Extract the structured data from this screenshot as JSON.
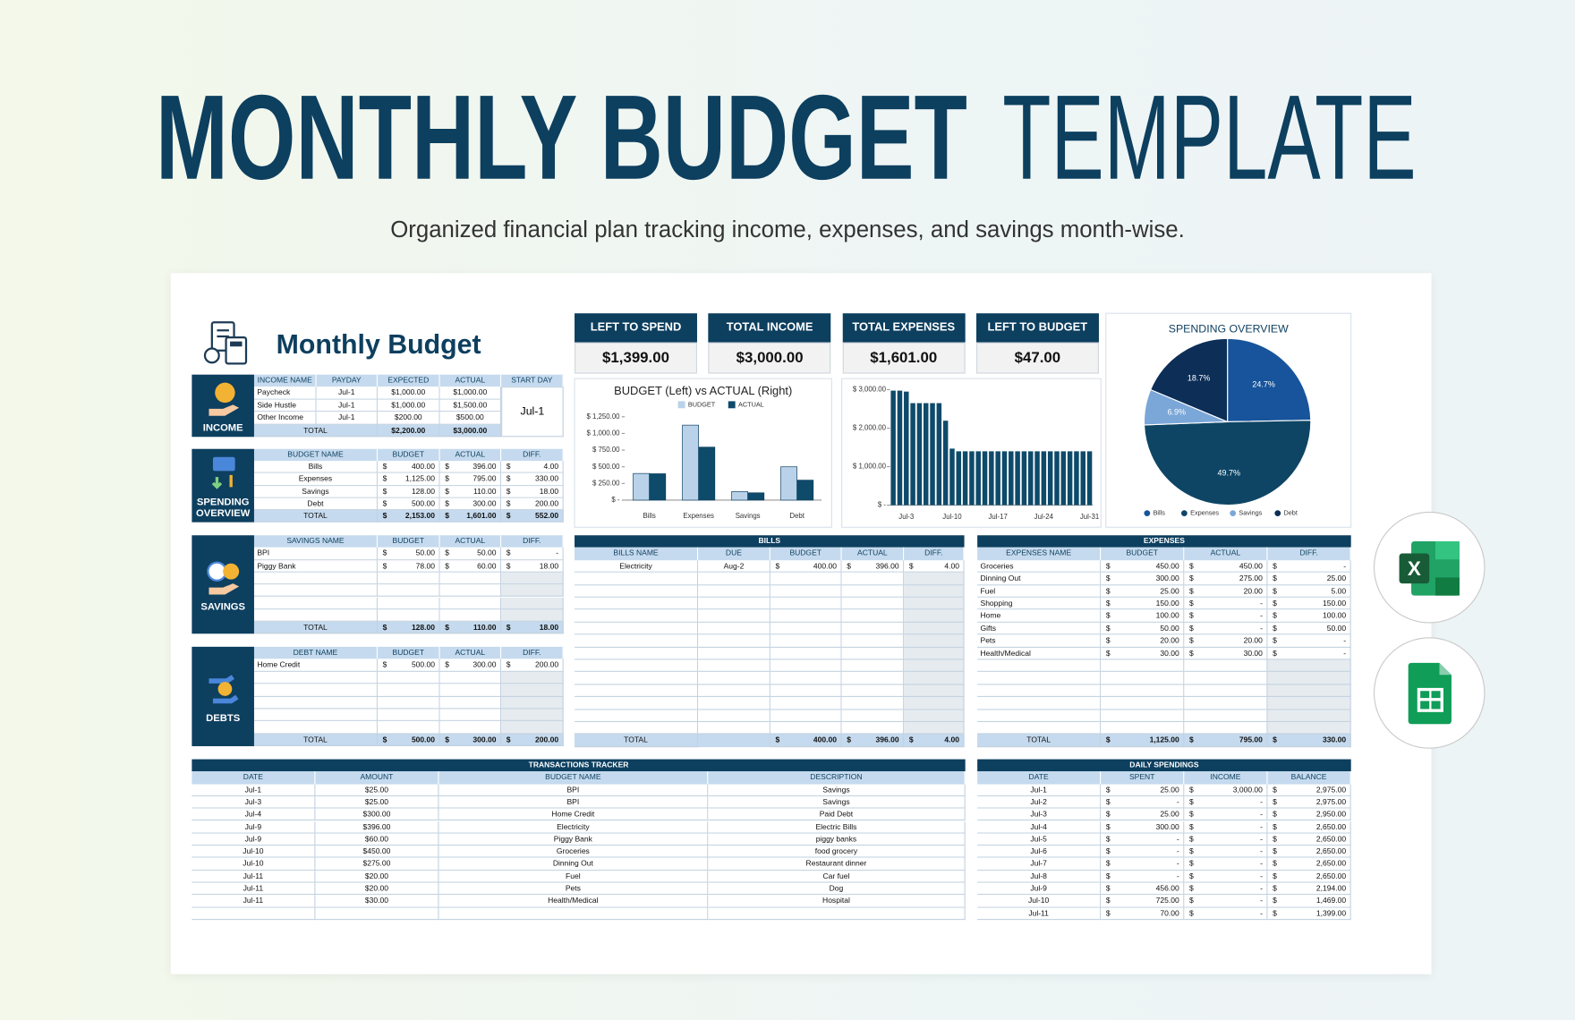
{
  "header": {
    "title_bold": "MONTHLY BUDGET",
    "title_light": "TEMPLATE",
    "subtitle": "Organized financial plan tracking income, expenses, and savings month-wise."
  },
  "app_icons": {
    "excel_letter": "X"
  },
  "sheet": {
    "title": "Monthly Budget",
    "currency": "$",
    "kpis": [
      {
        "label": "LEFT TO SPEND",
        "value": "$1,399.00"
      },
      {
        "label": "TOTAL INCOME",
        "value": "$3,000.00"
      },
      {
        "label": "TOTAL EXPENSES",
        "value": "$1,601.00"
      },
      {
        "label": "LEFT TO BUDGET",
        "value": "$47.00"
      }
    ],
    "income": {
      "label": "INCOME",
      "headers": [
        "INCOME NAME",
        "PAYDAY",
        "EXPECTED",
        "ACTUAL",
        "START DAY"
      ],
      "rows": [
        [
          "Paycheck",
          "Jul-1",
          "$1,000.00",
          "$1,000.00"
        ],
        [
          "Side Hustle",
          "Jul-1",
          "$1,000.00",
          "$1,500.00"
        ],
        [
          "Other Income",
          "Jul-1",
          "$200.00",
          "$500.00"
        ]
      ],
      "total": [
        "TOTAL",
        "$2,200.00",
        "$3,000.00"
      ],
      "start_day": "Jul-1"
    },
    "spending": {
      "label": "SPENDING OVERVIEW",
      "headers": [
        "BUDGET NAME",
        "BUDGET",
        "ACTUAL",
        "DIFF."
      ],
      "rows": [
        [
          "Bills",
          "400.00",
          "396.00",
          "4.00"
        ],
        [
          "Expenses",
          "1,125.00",
          "795.00",
          "330.00"
        ],
        [
          "Savings",
          "128.00",
          "110.00",
          "18.00"
        ],
        [
          "Debt",
          "500.00",
          "300.00",
          "200.00"
        ]
      ],
      "total": [
        "TOTAL",
        "2,153.00",
        "1,601.00",
        "552.00"
      ]
    },
    "savings": {
      "label": "SAVINGS",
      "headers": [
        "SAVINGS NAME",
        "BUDGET",
        "ACTUAL",
        "DIFF."
      ],
      "rows": [
        [
          "BPI",
          "50.00",
          "50.00",
          "-"
        ],
        [
          "Piggy Bank",
          "78.00",
          "60.00",
          "18.00"
        ]
      ],
      "total": [
        "TOTAL",
        "128.00",
        "110.00",
        "18.00"
      ]
    },
    "debts": {
      "label": "DEBTS",
      "headers": [
        "DEBT NAME",
        "BUDGET",
        "ACTUAL",
        "DIFF."
      ],
      "rows": [
        [
          "Home Credit",
          "500.00",
          "300.00",
          "200.00"
        ]
      ],
      "total": [
        "TOTAL",
        "500.00",
        "300.00",
        "200.00"
      ]
    },
    "bills": {
      "title": "BILLS",
      "headers": [
        "BILLS NAME",
        "DUE",
        "BUDGET",
        "ACTUAL",
        "DIFF."
      ],
      "rows": [
        [
          "Electricity",
          "Aug-2",
          "400.00",
          "396.00",
          "4.00"
        ]
      ],
      "total": [
        "TOTAL",
        "400.00",
        "396.00",
        "4.00"
      ]
    },
    "expenses": {
      "title": "EXPENSES",
      "headers": [
        "EXPENSES NAME",
        "BUDGET",
        "ACTUAL",
        "DIFF."
      ],
      "rows": [
        [
          "Groceries",
          "450.00",
          "450.00",
          "-"
        ],
        [
          "Dinning Out",
          "300.00",
          "275.00",
          "25.00"
        ],
        [
          "Fuel",
          "25.00",
          "20.00",
          "5.00"
        ],
        [
          "Shopping",
          "150.00",
          "-",
          "150.00"
        ],
        [
          "Home",
          "100.00",
          "-",
          "100.00"
        ],
        [
          "Gifts",
          "50.00",
          "-",
          "50.00"
        ],
        [
          "Pets",
          "20.00",
          "20.00",
          "-"
        ],
        [
          "Health/Medical",
          "30.00",
          "30.00",
          "-"
        ]
      ],
      "total": [
        "TOTAL",
        "1,125.00",
        "795.00",
        "330.00"
      ]
    },
    "transactions": {
      "title": "TRANSACTIONS TRACKER",
      "headers": [
        "DATE",
        "AMOUNT",
        "BUDGET NAME",
        "DESCRIPTION"
      ],
      "rows": [
        [
          "Jul-1",
          "$25.00",
          "BPI",
          "Savings"
        ],
        [
          "Jul-3",
          "$25.00",
          "BPI",
          "Savings"
        ],
        [
          "Jul-4",
          "$300.00",
          "Home Credit",
          "Paid Debt"
        ],
        [
          "Jul-9",
          "$396.00",
          "Electricity",
          "Electric Bills"
        ],
        [
          "Jul-9",
          "$60.00",
          "Piggy Bank",
          "piggy banks"
        ],
        [
          "Jul-10",
          "$450.00",
          "Groceries",
          "food grocery"
        ],
        [
          "Jul-10",
          "$275.00",
          "Dinning Out",
          "Restaurant dinner"
        ],
        [
          "Jul-11",
          "$20.00",
          "Fuel",
          "Car fuel"
        ],
        [
          "Jul-11",
          "$20.00",
          "Pets",
          "Dog"
        ],
        [
          "Jul-11",
          "$30.00",
          "Health/Medical",
          "Hospital"
        ]
      ]
    },
    "daily": {
      "title": "DAILY SPENDINGS",
      "headers": [
        "DATE",
        "SPENT",
        "INCOME",
        "BALANCE"
      ],
      "rows": [
        [
          "Jul-1",
          "25.00",
          "3,000.00",
          "2,975.00"
        ],
        [
          "Jul-2",
          "-",
          "-",
          "2,975.00"
        ],
        [
          "Jul-3",
          "25.00",
          "-",
          "2,950.00"
        ],
        [
          "Jul-4",
          "300.00",
          "-",
          "2,650.00"
        ],
        [
          "Jul-5",
          "-",
          "-",
          "2,650.00"
        ],
        [
          "Jul-6",
          "-",
          "-",
          "2,650.00"
        ],
        [
          "Jul-7",
          "-",
          "-",
          "2,650.00"
        ],
        [
          "Jul-8",
          "-",
          "-",
          "2,650.00"
        ],
        [
          "Jul-9",
          "456.00",
          "-",
          "2,194.00"
        ],
        [
          "Jul-10",
          "725.00",
          "-",
          "1,469.00"
        ],
        [
          "Jul-11",
          "70.00",
          "-",
          "1,399.00"
        ]
      ]
    }
  },
  "chart_data": [
    {
      "type": "bar",
      "title": "BUDGET (Left) vs ACTUAL (Right)",
      "categories": [
        "Bills",
        "Expenses",
        "Savings",
        "Debt"
      ],
      "series": [
        {
          "name": "BUDGET",
          "color": "#b9d2ea",
          "values": [
            400,
            1125,
            128,
            500
          ]
        },
        {
          "name": "ACTUAL",
          "color": "#0e4a6a",
          "values": [
            396,
            795,
            110,
            300
          ]
        }
      ],
      "ylim": [
        0,
        1250
      ],
      "yticks": [
        {
          "value": 0,
          "label": "$ -"
        },
        {
          "value": 250,
          "label": "$ 250.00"
        },
        {
          "value": 500,
          "label": "$ 500.00"
        },
        {
          "value": 750,
          "label": "$ 750.00"
        },
        {
          "value": 1000,
          "label": "$ 1,000.00"
        },
        {
          "value": 1250,
          "label": "$ 1,250.00"
        }
      ],
      "legend": "top"
    },
    {
      "type": "bar",
      "categories": [
        null,
        null,
        "Jul-3",
        null,
        null,
        null,
        null,
        null,
        null,
        "Jul-10",
        null,
        null,
        null,
        null,
        null,
        null,
        "Jul-17",
        null,
        null,
        null,
        null,
        null,
        null,
        "Jul-24",
        null,
        null,
        null,
        null,
        null,
        null,
        "Jul-31"
      ],
      "values": [
        2975,
        2975,
        2950,
        2650,
        2650,
        2650,
        2650,
        2650,
        2194,
        1469,
        1399,
        1399,
        1399,
        1399,
        1399,
        1399,
        1399,
        1399,
        1399,
        1399,
        1399,
        1399,
        1399,
        1399,
        1399,
        1399,
        1399,
        1399,
        1399,
        1399,
        1399
      ],
      "color": "#0e4a6a",
      "ylim": [
        0,
        3000
      ],
      "yticks": [
        {
          "value": 0,
          "label": "$ -"
        },
        {
          "value": 1000,
          "label": "$ 1,000.00"
        },
        {
          "value": 2000,
          "label": "$ 2,000.00"
        },
        {
          "value": 3000,
          "label": "$ 3,000.00"
        }
      ]
    },
    {
      "type": "pie",
      "title": "SPENDING OVERVIEW",
      "categories": [
        "Bills",
        "Expenses",
        "Savings",
        "Debt"
      ],
      "values": [
        24.7,
        49.7,
        6.9,
        18.7
      ],
      "value_labels": [
        "24.7%",
        "49.7%",
        "6.9%",
        "18.7%"
      ],
      "colors": [
        "#17549b",
        "#0e4565",
        "#7aa7d8",
        "#0c2e57"
      ],
      "legend": "bottom"
    }
  ]
}
